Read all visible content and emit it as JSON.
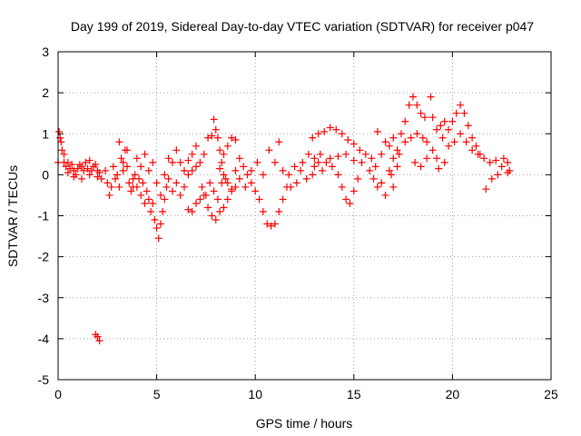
{
  "chart_data": {
    "type": "scatter",
    "title": "Day 199 of 2019, Sidereal Day-to-day VTEC variation (SDTVAR) for receiver p047",
    "xlabel": "GPS time / hours",
    "ylabel": "SDTVAR / TECUs",
    "xlim": [
      0,
      25
    ],
    "ylim": [
      -5,
      3
    ],
    "x_ticks": [
      0,
      5,
      10,
      15,
      20,
      25
    ],
    "y_ticks": [
      -5,
      -4,
      -3,
      -2,
      -1,
      0,
      1,
      2,
      3
    ],
    "grid": true,
    "marker": "+",
    "color": "#ff0000",
    "series": [
      {
        "name": "SDTVAR",
        "points": [
          [
            0.0,
            0.3
          ],
          [
            0.05,
            1.05
          ],
          [
            0.1,
            0.9
          ],
          [
            0.2,
            0.6
          ],
          [
            0.3,
            0.3
          ],
          [
            0.4,
            0.2
          ],
          [
            0.5,
            0.05
          ],
          [
            0.6,
            0.15
          ],
          [
            0.7,
            0.25
          ],
          [
            0.8,
            0.1
          ],
          [
            0.9,
            0.0
          ],
          [
            1.0,
            0.15
          ],
          [
            1.1,
            0.25
          ],
          [
            1.2,
            0.2
          ],
          [
            1.3,
            0.1
          ],
          [
            1.4,
            0.3
          ],
          [
            1.5,
            0.15
          ],
          [
            1.6,
            0.0
          ],
          [
            1.7,
            0.1
          ],
          [
            1.8,
            0.2
          ],
          [
            1.9,
            0.25
          ],
          [
            2.0,
            0.1
          ],
          [
            2.1,
            0.05
          ],
          [
            2.2,
            -0.1
          ],
          [
            0.15,
            0.8
          ],
          [
            0.3,
            0.5
          ],
          [
            0.5,
            0.3
          ],
          [
            0.8,
            -0.05
          ],
          [
            1.2,
            -0.1
          ],
          [
            1.6,
            0.35
          ],
          [
            2.0,
            -0.05
          ],
          [
            1.9,
            -3.9
          ],
          [
            2.0,
            -3.95
          ],
          [
            2.1,
            -4.05
          ],
          [
            2.4,
            0.1
          ],
          [
            2.5,
            -0.2
          ],
          [
            2.6,
            -0.5
          ],
          [
            2.7,
            -0.3
          ],
          [
            2.8,
            0.2
          ],
          [
            2.9,
            -0.1
          ],
          [
            3.0,
            0.0
          ],
          [
            3.1,
            -0.3
          ],
          [
            3.2,
            0.4
          ],
          [
            3.3,
            0.3
          ],
          [
            3.4,
            0.6
          ],
          [
            3.5,
            0.2
          ],
          [
            3.6,
            -0.2
          ],
          [
            3.7,
            -0.4
          ],
          [
            3.8,
            -0.1
          ],
          [
            3.9,
            0.0
          ],
          [
            4.0,
            -0.3
          ],
          [
            4.1,
            -0.1
          ],
          [
            4.2,
            -0.5
          ],
          [
            4.3,
            -0.2
          ],
          [
            4.4,
            -0.7
          ],
          [
            4.5,
            -0.4
          ],
          [
            4.6,
            -0.6
          ],
          [
            4.7,
            -0.9
          ],
          [
            4.8,
            -0.7
          ],
          [
            4.9,
            -1.1
          ],
          [
            5.0,
            -1.3
          ],
          [
            5.1,
            -1.55
          ],
          [
            5.2,
            -1.2
          ],
          [
            5.3,
            -0.9
          ],
          [
            5.4,
            -0.6
          ],
          [
            5.5,
            -0.3
          ],
          [
            3.1,
            0.8
          ],
          [
            3.3,
            0.1
          ],
          [
            3.5,
            0.6
          ],
          [
            3.8,
            -0.3
          ],
          [
            4.0,
            0.4
          ],
          [
            4.2,
            0.2
          ],
          [
            4.4,
            0.5
          ],
          [
            4.6,
            0.1
          ],
          [
            4.8,
            0.3
          ],
          [
            5.0,
            -0.2
          ],
          [
            5.2,
            -0.5
          ],
          [
            5.4,
            0.0
          ],
          [
            5.6,
            -0.1
          ],
          [
            5.8,
            -0.4
          ],
          [
            6.0,
            -0.2
          ],
          [
            6.2,
            -0.5
          ],
          [
            6.4,
            -0.3
          ],
          [
            6.6,
            0.0
          ],
          [
            6.8,
            0.1
          ],
          [
            7.0,
            0.2
          ],
          [
            7.2,
            0.3
          ],
          [
            7.4,
            0.5
          ],
          [
            7.6,
            0.9
          ],
          [
            7.8,
            0.95
          ],
          [
            5.6,
            0.4
          ],
          [
            5.8,
            0.3
          ],
          [
            6.0,
            0.6
          ],
          [
            6.2,
            0.3
          ],
          [
            6.4,
            0.1
          ],
          [
            6.6,
            0.35
          ],
          [
            6.8,
            0.5
          ],
          [
            7.0,
            0.7
          ],
          [
            6.6,
            -0.85
          ],
          [
            6.8,
            -0.9
          ],
          [
            7.0,
            -0.7
          ],
          [
            7.2,
            -0.6
          ],
          [
            7.4,
            -0.5
          ],
          [
            7.6,
            -0.8
          ],
          [
            7.8,
            -1.0
          ],
          [
            8.0,
            -1.1
          ],
          [
            8.2,
            -0.9
          ],
          [
            8.4,
            -0.8
          ],
          [
            8.6,
            -0.6
          ],
          [
            8.8,
            -0.4
          ],
          [
            9.0,
            -0.3
          ],
          [
            7.3,
            -0.3
          ],
          [
            7.5,
            -0.5
          ],
          [
            7.7,
            -0.2
          ],
          [
            7.9,
            -0.4
          ],
          [
            8.1,
            -0.6
          ],
          [
            8.3,
            -0.2
          ],
          [
            8.5,
            -0.1
          ],
          [
            7.9,
            1.35
          ],
          [
            8.0,
            1.1
          ],
          [
            8.1,
            0.9
          ],
          [
            8.2,
            0.6
          ],
          [
            8.3,
            0.3
          ],
          [
            8.4,
            0.5
          ],
          [
            8.6,
            0.7
          ],
          [
            8.8,
            0.9
          ],
          [
            9.0,
            0.85
          ],
          [
            8.2,
            0.15
          ],
          [
            8.4,
            0.0
          ],
          [
            8.6,
            -0.2
          ],
          [
            8.8,
            -0.35
          ],
          [
            9.0,
            0.1
          ],
          [
            9.2,
            0.4
          ],
          [
            9.4,
            0.2
          ],
          [
            9.6,
            0.0
          ],
          [
            9.8,
            -0.2
          ],
          [
            10.0,
            -0.4
          ],
          [
            10.2,
            -0.6
          ],
          [
            10.4,
            -0.9
          ],
          [
            10.6,
            -1.2
          ],
          [
            10.8,
            -1.25
          ],
          [
            11.0,
            -1.2
          ],
          [
            11.2,
            -0.9
          ],
          [
            11.4,
            -0.6
          ],
          [
            11.6,
            -0.3
          ],
          [
            9.2,
            -0.1
          ],
          [
            9.5,
            -0.3
          ],
          [
            9.8,
            0.1
          ],
          [
            10.1,
            0.3
          ],
          [
            10.4,
            0.0
          ],
          [
            10.7,
            0.6
          ],
          [
            11.0,
            0.3
          ],
          [
            11.2,
            0.8
          ],
          [
            11.4,
            0.1
          ],
          [
            11.7,
            0.0
          ],
          [
            12.0,
            0.2
          ],
          [
            12.3,
            0.1
          ],
          [
            12.6,
            -0.1
          ],
          [
            12.9,
            0.0
          ],
          [
            13.2,
            0.3
          ],
          [
            11.8,
            -0.3
          ],
          [
            12.1,
            -0.2
          ],
          [
            12.4,
            0.3
          ],
          [
            12.7,
            0.5
          ],
          [
            13.0,
            0.4
          ],
          [
            13.3,
            0.5
          ],
          [
            13.6,
            0.3
          ],
          [
            13.9,
            0.2
          ],
          [
            14.2,
            0.0
          ],
          [
            14.4,
            -0.3
          ],
          [
            14.6,
            -0.6
          ],
          [
            14.8,
            -0.7
          ],
          [
            15.0,
            -0.4
          ],
          [
            15.2,
            -0.1
          ],
          [
            12.9,
            0.9
          ],
          [
            13.2,
            1.0
          ],
          [
            13.5,
            1.05
          ],
          [
            13.8,
            1.15
          ],
          [
            14.1,
            1.1
          ],
          [
            14.4,
            1.0
          ],
          [
            14.7,
            0.85
          ],
          [
            15.0,
            0.75
          ],
          [
            15.3,
            0.6
          ],
          [
            15.6,
            0.5
          ],
          [
            15.9,
            0.4
          ],
          [
            16.1,
            0.2
          ],
          [
            13.0,
            0.2
          ],
          [
            13.4,
            0.1
          ],
          [
            13.8,
            0.4
          ],
          [
            14.2,
            0.45
          ],
          [
            14.6,
            0.5
          ],
          [
            15.0,
            0.35
          ],
          [
            15.4,
            0.3
          ],
          [
            15.8,
            0.1
          ],
          [
            16.0,
            -0.1
          ],
          [
            16.2,
            -0.3
          ],
          [
            16.4,
            -0.2
          ],
          [
            16.6,
            -0.5
          ],
          [
            16.8,
            0.1
          ],
          [
            17.0,
            -0.3
          ],
          [
            17.2,
            0.2
          ],
          [
            16.2,
            1.05
          ],
          [
            16.4,
            0.5
          ],
          [
            16.6,
            0.8
          ],
          [
            16.8,
            0.7
          ],
          [
            17.0,
            0.9
          ],
          [
            17.2,
            0.6
          ],
          [
            17.4,
            1.0
          ],
          [
            17.6,
            1.3
          ],
          [
            17.8,
            1.7
          ],
          [
            18.0,
            1.9
          ],
          [
            18.2,
            1.7
          ],
          [
            18.4,
            1.5
          ],
          [
            18.6,
            1.4
          ],
          [
            17.0,
            0.4
          ],
          [
            17.3,
            0.5
          ],
          [
            17.6,
            0.8
          ],
          [
            17.9,
            0.9
          ],
          [
            18.2,
            1.0
          ],
          [
            18.5,
            0.9
          ],
          [
            18.7,
            0.8
          ],
          [
            16.9,
            0.0
          ],
          [
            18.1,
            0.3
          ],
          [
            18.4,
            0.2
          ],
          [
            18.7,
            0.4
          ],
          [
            18.9,
            1.9
          ],
          [
            19.0,
            1.4
          ],
          [
            19.2,
            1.1
          ],
          [
            19.4,
            1.2
          ],
          [
            19.6,
            1.3
          ],
          [
            19.8,
            1.1
          ],
          [
            20.0,
            1.3
          ],
          [
            20.2,
            1.5
          ],
          [
            20.4,
            1.7
          ],
          [
            20.6,
            1.5
          ],
          [
            20.8,
            1.2
          ],
          [
            21.0,
            0.9
          ],
          [
            21.2,
            0.7
          ],
          [
            21.4,
            0.5
          ],
          [
            19.0,
            0.6
          ],
          [
            19.2,
            0.4
          ],
          [
            19.5,
            0.9
          ],
          [
            19.8,
            0.7
          ],
          [
            20.1,
            0.8
          ],
          [
            20.4,
            1.0
          ],
          [
            20.7,
            0.8
          ],
          [
            21.0,
            0.6
          ],
          [
            21.3,
            0.5
          ],
          [
            21.6,
            0.4
          ],
          [
            21.9,
            0.3
          ],
          [
            22.2,
            0.35
          ],
          [
            22.5,
            0.2
          ],
          [
            22.8,
            0.3
          ],
          [
            22.9,
            0.1
          ],
          [
            19.3,
            0.15
          ],
          [
            19.6,
            0.3
          ],
          [
            21.7,
            -0.35
          ],
          [
            22.0,
            -0.1
          ],
          [
            22.3,
            0.0
          ],
          [
            22.6,
            0.4
          ],
          [
            22.8,
            0.05
          ]
        ]
      }
    ]
  }
}
